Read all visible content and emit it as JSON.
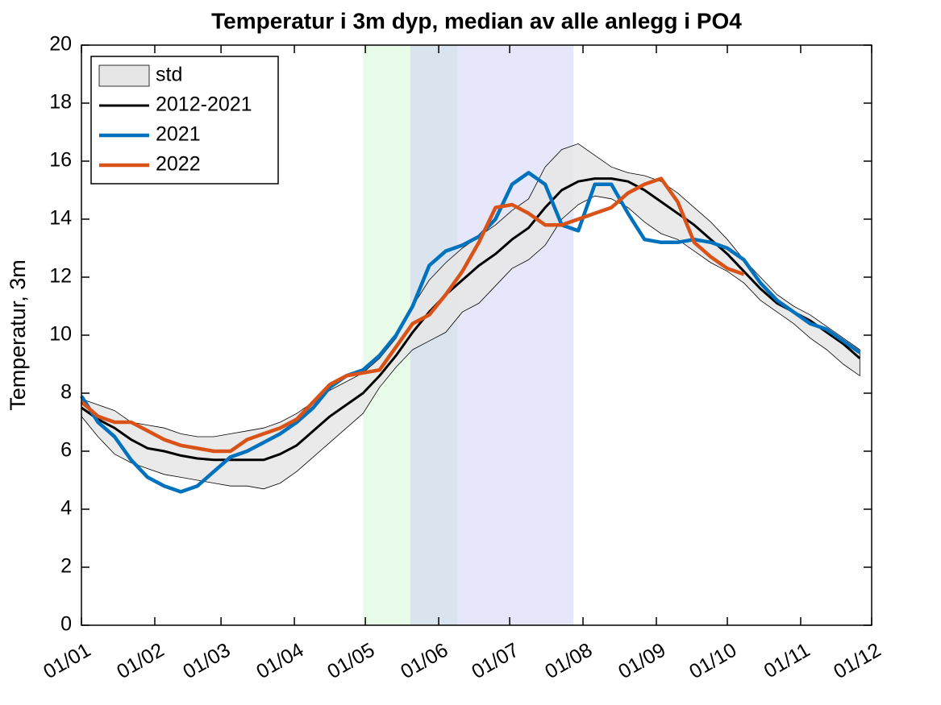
{
  "chart_data": {
    "type": "line",
    "title": "Temperatur i 3m dyp, median av alle anlegg i PO4",
    "y_label": "Temperatur, 3m",
    "xlim": [
      1,
      335
    ],
    "ylim": [
      0,
      20
    ],
    "xticks": [
      {
        "value": 1,
        "label": "01/01"
      },
      {
        "value": 32,
        "label": "01/02"
      },
      {
        "value": 60,
        "label": "01/03"
      },
      {
        "value": 91,
        "label": "01/04"
      },
      {
        "value": 121,
        "label": "01/05"
      },
      {
        "value": 152,
        "label": "01/06"
      },
      {
        "value": 182,
        "label": "01/07"
      },
      {
        "value": 213,
        "label": "01/08"
      },
      {
        "value": 244,
        "label": "01/09"
      },
      {
        "value": 274,
        "label": "01/10"
      },
      {
        "value": 305,
        "label": "01/11"
      },
      {
        "value": 335,
        "label": "01/12"
      }
    ],
    "yticks": [
      0,
      2,
      4,
      6,
      8,
      10,
      12,
      14,
      16,
      18,
      20
    ],
    "regions": [
      {
        "x": [
          120,
          160
        ],
        "color": "#c8f5c8"
      },
      {
        "x": [
          140,
          209
        ],
        "color": "#c3c3f7"
      }
    ],
    "x": [
      1,
      8,
      15,
      22,
      29,
      36,
      43,
      50,
      57,
      64,
      71,
      78,
      85,
      92,
      99,
      106,
      113,
      120,
      127,
      134,
      141,
      148,
      155,
      162,
      169,
      176,
      183,
      190,
      197,
      204,
      211,
      218,
      225,
      232,
      239,
      246,
      253,
      260,
      267,
      274,
      281,
      288,
      295,
      302,
      309,
      316,
      323,
      330
    ],
    "band": {
      "name": "std",
      "color": "#e6e6e6",
      "upper": [
        7.8,
        7.6,
        7.4,
        7.0,
        6.9,
        6.8,
        6.6,
        6.5,
        6.5,
        6.6,
        6.7,
        6.8,
        7.0,
        7.3,
        7.7,
        8.1,
        8.4,
        8.7,
        9.2,
        9.9,
        11.0,
        11.9,
        12.5,
        13.0,
        13.4,
        13.8,
        14.3,
        14.7,
        15.8,
        16.4,
        16.6,
        16.2,
        15.8,
        15.6,
        15.5,
        15.3,
        14.9,
        14.4,
        13.9,
        13.3,
        12.6,
        12.0,
        11.4,
        11.0,
        10.7,
        10.3,
        9.9,
        9.5
      ],
      "lower": [
        7.2,
        6.5,
        5.9,
        5.6,
        5.4,
        5.2,
        5.1,
        5.0,
        4.9,
        4.8,
        4.8,
        4.7,
        4.9,
        5.3,
        5.8,
        6.3,
        6.8,
        7.3,
        8.2,
        8.9,
        9.5,
        9.8,
        10.1,
        10.8,
        11.1,
        11.7,
        12.3,
        12.6,
        13.1,
        14.0,
        14.5,
        14.8,
        14.7,
        14.4,
        13.9,
        13.5,
        13.3,
        12.9,
        12.5,
        12.2,
        11.8,
        11.2,
        10.8,
        10.4,
        9.9,
        9.5,
        9.0,
        8.6
      ]
    },
    "series": [
      {
        "name": "2012-2021",
        "color": "#000000",
        "values": [
          7.5,
          7.1,
          6.8,
          6.4,
          6.1,
          6.0,
          5.85,
          5.75,
          5.7,
          5.7,
          5.7,
          5.7,
          5.9,
          6.2,
          6.7,
          7.2,
          7.6,
          8.0,
          8.6,
          9.3,
          10.1,
          10.8,
          11.4,
          11.9,
          12.4,
          12.8,
          13.3,
          13.7,
          14.4,
          15.0,
          15.3,
          15.4,
          15.4,
          15.3,
          15.0,
          14.6,
          14.2,
          13.8,
          13.3,
          12.8,
          12.2,
          11.6,
          11.1,
          10.8,
          10.5,
          10.1,
          9.7,
          9.2
        ]
      },
      {
        "name": "2021",
        "color": "#0072bd",
        "values": [
          7.9,
          7.0,
          6.5,
          5.7,
          5.1,
          4.8,
          4.6,
          4.8,
          5.3,
          5.8,
          6.0,
          6.3,
          6.6,
          7.0,
          7.5,
          8.2,
          8.6,
          8.8,
          9.3,
          10.0,
          11.0,
          12.4,
          12.9,
          13.1,
          13.4,
          14.0,
          15.2,
          15.6,
          15.2,
          13.8,
          13.6,
          15.2,
          15.2,
          14.2,
          13.3,
          13.2,
          13.2,
          13.3,
          13.2,
          13.0,
          12.6,
          11.8,
          11.2,
          10.8,
          10.4,
          10.2,
          9.8,
          9.4
        ]
      },
      {
        "name": "2022",
        "color": "#d95319",
        "values": [
          7.7,
          7.2,
          7.0,
          7.0,
          6.7,
          6.4,
          6.2,
          6.1,
          6.0,
          6.0,
          6.4,
          6.6,
          6.8,
          7.1,
          7.7,
          8.3,
          8.6,
          8.7,
          8.8,
          9.6,
          10.4,
          10.7,
          11.4,
          12.2,
          13.2,
          14.4,
          14.5,
          14.2,
          13.8,
          13.8,
          14.0,
          14.2,
          14.4,
          14.9,
          15.2,
          15.4,
          14.6,
          13.2,
          12.7,
          12.3,
          12.1,
          null,
          null,
          null,
          null,
          null,
          null,
          null
        ]
      }
    ]
  }
}
